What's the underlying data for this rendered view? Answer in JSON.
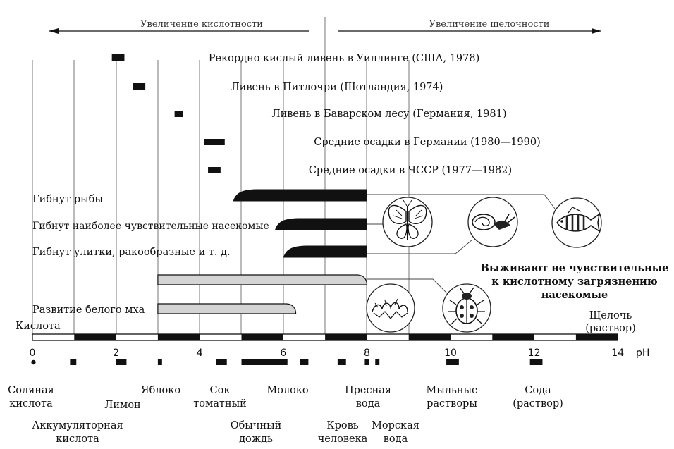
{
  "header": {
    "acidity_increase": "Увеличение кислотности",
    "alkalinity_increase": "Увеличение щелочности"
  },
  "rain_events": [
    {
      "label": "Рекордно кислый ливень в Уиллинге (США, 1978)",
      "ph_from": 1.9,
      "ph_to": 2.2
    },
    {
      "label": "Ливень в Питлочри (Шотландия, 1974)",
      "ph_from": 2.4,
      "ph_to": 2.7
    },
    {
      "label": "Ливень в Баварском лесу (Германия, 1981)",
      "ph_from": 3.4,
      "ph_to": 3.6
    },
    {
      "label": "Средние осадки в Германии (1980—1990)",
      "ph_from": 4.1,
      "ph_to": 4.6
    },
    {
      "label": "Средние осадки в ЧССР (1977—1982)",
      "ph_from": 4.2,
      "ph_to": 4.5
    }
  ],
  "effects": [
    {
      "label": "Гибнут рыбы",
      "ph_from": 4.8,
      "ph_to": 8.0,
      "style": "black"
    },
    {
      "label": "Гибнут наиболее чувствительные насекомые",
      "ph_from": 5.8,
      "ph_to": 8.0,
      "style": "black"
    },
    {
      "label": "Гибнут улитки, ракообразные и т. д.",
      "ph_from": 6.0,
      "ph_to": 8.0,
      "style": "black"
    },
    {
      "label": "",
      "ph_from": 3.0,
      "ph_to": 8.0,
      "style": "gray"
    },
    {
      "label": "Развитие белого мха",
      "ph_from": 3.0,
      "ph_to": 6.3,
      "style": "gray"
    }
  ],
  "survivors_text": [
    "Выживают не чувствительные",
    "к кислотному загрязнению",
    "насекомые"
  ],
  "icons": [
    "butterfly-icon",
    "snail-icon",
    "fish-icon",
    "moss-icon",
    "beetle-icon"
  ],
  "axis": {
    "min": 0,
    "max": 14,
    "unit": "pH",
    "tick_labels": [
      "0",
      "2",
      "4",
      "6",
      "8",
      "10",
      "12",
      "14"
    ],
    "left_label": "Кислота",
    "right_label": [
      "Щелочь",
      "(раствор)"
    ]
  },
  "substances": [
    {
      "lines": [
        "Соляная",
        "кислота"
      ],
      "ph_from": 0.0,
      "ph_to": 0.05
    },
    {
      "lines": [
        "Аккумуляторная",
        "кислота"
      ],
      "ph_from": 0.9,
      "ph_to": 1.05
    },
    {
      "lines": [
        "Лимон"
      ],
      "ph_from": 2.0,
      "ph_to": 2.25
    },
    {
      "lines": [
        "Яблоко"
      ],
      "ph_from": 3.0,
      "ph_to": 3.1
    },
    {
      "lines": [
        "Сок",
        "томатный"
      ],
      "ph_from": 4.4,
      "ph_to": 4.65
    },
    {
      "lines": [
        "Обычный",
        "дождь"
      ],
      "ph_from": 5.0,
      "ph_to": 6.1
    },
    {
      "lines": [
        "Молоко"
      ],
      "ph_from": 6.4,
      "ph_to": 6.6
    },
    {
      "lines": [
        "Кровь",
        "человека"
      ],
      "ph_from": 7.3,
      "ph_to": 7.5
    },
    {
      "lines": [
        "Пресная",
        "вода"
      ],
      "ph_from": 7.95,
      "ph_to": 8.05
    },
    {
      "lines": [
        "Морская",
        "вода"
      ],
      "ph_from": 8.2,
      "ph_to": 8.3
    },
    {
      "lines": [
        "Мыльные",
        "растворы"
      ],
      "ph_from": 9.9,
      "ph_to": 10.2
    },
    {
      "lines": [
        "Сода",
        "(раствор)"
      ],
      "ph_from": 11.9,
      "ph_to": 12.2
    }
  ]
}
